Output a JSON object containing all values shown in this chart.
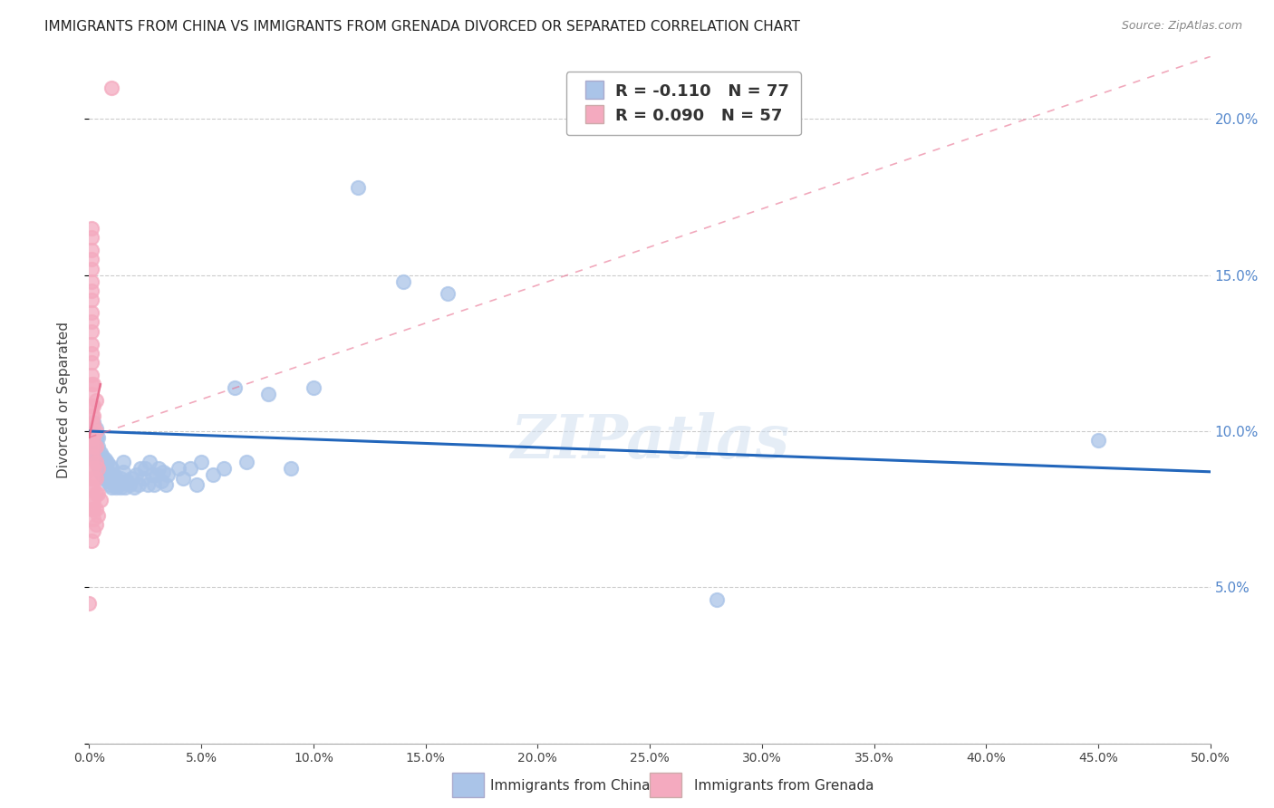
{
  "title": "IMMIGRANTS FROM CHINA VS IMMIGRANTS FROM GRENADA DIVORCED OR SEPARATED CORRELATION CHART",
  "source": "Source: ZipAtlas.com",
  "ylabel": "Divorced or Separated",
  "watermark": "ZIPatlas",
  "china_color": "#aac4e8",
  "grenada_color": "#f4aabf",
  "china_line_color": "#2266bb",
  "grenada_line_color": "#e87090",
  "china_scatter": [
    [
      0.001,
      0.098
    ],
    [
      0.001,
      0.102
    ],
    [
      0.002,
      0.096
    ],
    [
      0.002,
      0.1
    ],
    [
      0.002,
      0.103
    ],
    [
      0.003,
      0.092
    ],
    [
      0.003,
      0.095
    ],
    [
      0.003,
      0.098
    ],
    [
      0.003,
      0.101
    ],
    [
      0.004,
      0.089
    ],
    [
      0.004,
      0.092
    ],
    [
      0.004,
      0.095
    ],
    [
      0.004,
      0.098
    ],
    [
      0.005,
      0.087
    ],
    [
      0.005,
      0.09
    ],
    [
      0.005,
      0.093
    ],
    [
      0.006,
      0.086
    ],
    [
      0.006,
      0.089
    ],
    [
      0.006,
      0.092
    ],
    [
      0.007,
      0.085
    ],
    [
      0.007,
      0.088
    ],
    [
      0.007,
      0.091
    ],
    [
      0.008,
      0.084
    ],
    [
      0.008,
      0.087
    ],
    [
      0.008,
      0.09
    ],
    [
      0.009,
      0.083
    ],
    [
      0.009,
      0.086
    ],
    [
      0.009,
      0.089
    ],
    [
      0.01,
      0.082
    ],
    [
      0.01,
      0.085
    ],
    [
      0.01,
      0.088
    ],
    [
      0.011,
      0.083
    ],
    [
      0.011,
      0.086
    ],
    [
      0.012,
      0.082
    ],
    [
      0.012,
      0.085
    ],
    [
      0.013,
      0.083
    ],
    [
      0.014,
      0.082
    ],
    [
      0.014,
      0.085
    ],
    [
      0.015,
      0.087
    ],
    [
      0.015,
      0.09
    ],
    [
      0.016,
      0.082
    ],
    [
      0.017,
      0.084
    ],
    [
      0.018,
      0.083
    ],
    [
      0.019,
      0.085
    ],
    [
      0.02,
      0.082
    ],
    [
      0.021,
      0.086
    ],
    [
      0.022,
      0.083
    ],
    [
      0.023,
      0.088
    ],
    [
      0.024,
      0.085
    ],
    [
      0.025,
      0.088
    ],
    [
      0.026,
      0.083
    ],
    [
      0.027,
      0.09
    ],
    [
      0.028,
      0.086
    ],
    [
      0.029,
      0.083
    ],
    [
      0.03,
      0.086
    ],
    [
      0.031,
      0.088
    ],
    [
      0.032,
      0.084
    ],
    [
      0.033,
      0.087
    ],
    [
      0.034,
      0.083
    ],
    [
      0.035,
      0.086
    ],
    [
      0.04,
      0.088
    ],
    [
      0.042,
      0.085
    ],
    [
      0.045,
      0.088
    ],
    [
      0.048,
      0.083
    ],
    [
      0.05,
      0.09
    ],
    [
      0.055,
      0.086
    ],
    [
      0.06,
      0.088
    ],
    [
      0.065,
      0.114
    ],
    [
      0.07,
      0.09
    ],
    [
      0.08,
      0.112
    ],
    [
      0.09,
      0.088
    ],
    [
      0.1,
      0.114
    ],
    [
      0.12,
      0.178
    ],
    [
      0.14,
      0.148
    ],
    [
      0.16,
      0.144
    ],
    [
      0.28,
      0.046
    ],
    [
      0.45,
      0.097
    ]
  ],
  "grenada_scatter": [
    [
      0.0,
      0.045
    ],
    [
      0.001,
      0.065
    ],
    [
      0.001,
      0.075
    ],
    [
      0.001,
      0.078
    ],
    [
      0.001,
      0.082
    ],
    [
      0.001,
      0.085
    ],
    [
      0.001,
      0.088
    ],
    [
      0.001,
      0.092
    ],
    [
      0.001,
      0.095
    ],
    [
      0.001,
      0.098
    ],
    [
      0.001,
      0.102
    ],
    [
      0.001,
      0.105
    ],
    [
      0.001,
      0.108
    ],
    [
      0.001,
      0.112
    ],
    [
      0.001,
      0.115
    ],
    [
      0.001,
      0.118
    ],
    [
      0.001,
      0.122
    ],
    [
      0.001,
      0.125
    ],
    [
      0.001,
      0.128
    ],
    [
      0.001,
      0.132
    ],
    [
      0.001,
      0.135
    ],
    [
      0.001,
      0.138
    ],
    [
      0.001,
      0.142
    ],
    [
      0.001,
      0.145
    ],
    [
      0.001,
      0.148
    ],
    [
      0.001,
      0.152
    ],
    [
      0.001,
      0.155
    ],
    [
      0.001,
      0.158
    ],
    [
      0.001,
      0.162
    ],
    [
      0.001,
      0.165
    ],
    [
      0.002,
      0.068
    ],
    [
      0.002,
      0.072
    ],
    [
      0.002,
      0.075
    ],
    [
      0.002,
      0.078
    ],
    [
      0.002,
      0.082
    ],
    [
      0.002,
      0.085
    ],
    [
      0.002,
      0.088
    ],
    [
      0.002,
      0.092
    ],
    [
      0.002,
      0.095
    ],
    [
      0.002,
      0.098
    ],
    [
      0.002,
      0.102
    ],
    [
      0.002,
      0.105
    ],
    [
      0.002,
      0.108
    ],
    [
      0.002,
      0.115
    ],
    [
      0.003,
      0.07
    ],
    [
      0.003,
      0.075
    ],
    [
      0.003,
      0.08
    ],
    [
      0.003,
      0.085
    ],
    [
      0.003,
      0.09
    ],
    [
      0.003,
      0.095
    ],
    [
      0.003,
      0.1
    ],
    [
      0.003,
      0.11
    ],
    [
      0.004,
      0.073
    ],
    [
      0.004,
      0.08
    ],
    [
      0.004,
      0.088
    ],
    [
      0.005,
      0.078
    ],
    [
      0.01,
      0.21
    ]
  ],
  "china_trendline": [
    [
      0.0,
      0.1
    ],
    [
      0.5,
      0.087
    ]
  ],
  "grenada_trendline_solid": [
    [
      0.0,
      0.098
    ],
    [
      0.005,
      0.115
    ]
  ],
  "grenada_trendline_dashed": [
    [
      0.0,
      0.098
    ],
    [
      0.5,
      0.22
    ]
  ],
  "xlim": [
    0.0,
    0.5
  ],
  "ylim": [
    0.0,
    0.22
  ],
  "right_yticks": [
    0.05,
    0.1,
    0.15,
    0.2
  ],
  "figsize": [
    14.06,
    8.92
  ],
  "dpi": 100
}
